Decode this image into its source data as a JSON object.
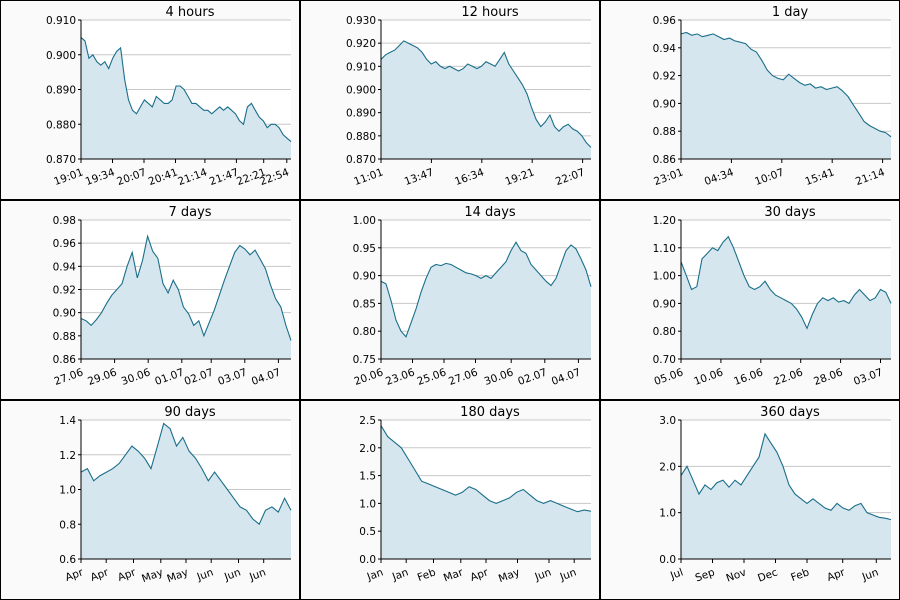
{
  "colors": {
    "line": "#1a6e8a",
    "fill": "#d6e6ee",
    "grid": "#c8c8c8",
    "axis": "#000000",
    "panel_bg": "#ffffff",
    "cell_bg": "#fafafa"
  },
  "chart_data": [
    {
      "type": "area",
      "title": "4 hours",
      "ylim": [
        0.87,
        0.91
      ],
      "yticks": [
        "0.870",
        "0.880",
        "0.890",
        "0.900",
        "0.910"
      ],
      "xticks": [
        "19:01",
        "19:34",
        "20:07",
        "20:41",
        "21:14",
        "21:47",
        "22:21",
        "22:54"
      ],
      "x_axis_pos": [
        0.0,
        0.15,
        0.3,
        0.45,
        0.59,
        0.74,
        0.87,
        0.98
      ],
      "series": [
        {
          "values": [
            0.905,
            0.904,
            0.899,
            0.9,
            0.898,
            0.897,
            0.898,
            0.896,
            0.899,
            0.901,
            0.902,
            0.893,
            0.887,
            0.884,
            0.883,
            0.885,
            0.887,
            0.886,
            0.885,
            0.888,
            0.887,
            0.886,
            0.886,
            0.887,
            0.891,
            0.891,
            0.89,
            0.888,
            0.886,
            0.886,
            0.885,
            0.884,
            0.884,
            0.883,
            0.884,
            0.885,
            0.884,
            0.885,
            0.884,
            0.883,
            0.881,
            0.88,
            0.885,
            0.886,
            0.884,
            0.882,
            0.881,
            0.879,
            0.88,
            0.88,
            0.879,
            0.877,
            0.876,
            0.875
          ]
        }
      ]
    },
    {
      "type": "area",
      "title": "12 hours",
      "ylim": [
        0.87,
        0.93
      ],
      "yticks": [
        "0.870",
        "0.880",
        "0.890",
        "0.900",
        "0.910",
        "0.920",
        "0.930"
      ],
      "xticks": [
        "11:01",
        "13:47",
        "16:34",
        "19:21",
        "22:07"
      ],
      "x_axis_pos": [
        0.0,
        0.24,
        0.48,
        0.72,
        0.96
      ],
      "series": [
        {
          "values": [
            0.913,
            0.915,
            0.916,
            0.917,
            0.919,
            0.921,
            0.92,
            0.919,
            0.918,
            0.916,
            0.913,
            0.911,
            0.912,
            0.91,
            0.909,
            0.91,
            0.909,
            0.908,
            0.909,
            0.911,
            0.91,
            0.909,
            0.91,
            0.912,
            0.911,
            0.91,
            0.913,
            0.916,
            0.911,
            0.908,
            0.905,
            0.902,
            0.898,
            0.892,
            0.887,
            0.884,
            0.886,
            0.889,
            0.884,
            0.882,
            0.884,
            0.885,
            0.883,
            0.882,
            0.88,
            0.877,
            0.875
          ]
        }
      ]
    },
    {
      "type": "area",
      "title": "1 day",
      "ylim": [
        0.86,
        0.96
      ],
      "yticks": [
        "0.86",
        "0.88",
        "0.90",
        "0.92",
        "0.94",
        "0.96"
      ],
      "xticks": [
        "23:01",
        "04:34",
        "10:07",
        "15:41",
        "21:14"
      ],
      "x_axis_pos": [
        0.0,
        0.24,
        0.48,
        0.72,
        0.96
      ],
      "series": [
        {
          "values": [
            0.95,
            0.951,
            0.949,
            0.95,
            0.948,
            0.949,
            0.95,
            0.948,
            0.946,
            0.947,
            0.945,
            0.944,
            0.943,
            0.939,
            0.937,
            0.931,
            0.924,
            0.92,
            0.918,
            0.917,
            0.921,
            0.918,
            0.915,
            0.913,
            0.914,
            0.911,
            0.912,
            0.91,
            0.911,
            0.912,
            0.909,
            0.905,
            0.899,
            0.893,
            0.887,
            0.884,
            0.882,
            0.88,
            0.879,
            0.876
          ]
        }
      ]
    },
    {
      "type": "area",
      "title": "7 days",
      "ylim": [
        0.86,
        0.98
      ],
      "yticks": [
        "0.86",
        "0.88",
        "0.90",
        "0.92",
        "0.94",
        "0.96",
        "0.98"
      ],
      "xticks": [
        "27.06",
        "29.06",
        "30.06",
        "01.07",
        "02.07",
        "03.07",
        "04.07"
      ],
      "x_axis_pos": [
        0.0,
        0.16,
        0.32,
        0.48,
        0.62,
        0.78,
        0.94
      ],
      "series": [
        {
          "values": [
            0.895,
            0.893,
            0.889,
            0.894,
            0.9,
            0.908,
            0.915,
            0.92,
            0.925,
            0.94,
            0.952,
            0.93,
            0.945,
            0.966,
            0.953,
            0.947,
            0.925,
            0.917,
            0.928,
            0.92,
            0.905,
            0.899,
            0.889,
            0.893,
            0.88,
            0.891,
            0.902,
            0.915,
            0.928,
            0.94,
            0.952,
            0.958,
            0.955,
            0.95,
            0.954,
            0.946,
            0.938,
            0.924,
            0.912,
            0.905,
            0.889,
            0.876
          ]
        }
      ]
    },
    {
      "type": "area",
      "title": "14 days",
      "ylim": [
        0.75,
        1.0
      ],
      "yticks": [
        "0.75",
        "0.80",
        "0.85",
        "0.90",
        "0.95",
        "1.00"
      ],
      "xticks": [
        "20.06",
        "23.06",
        "25.06",
        "27.06",
        "30.06",
        "02.07",
        "04.07"
      ],
      "x_axis_pos": [
        0.0,
        0.15,
        0.3,
        0.45,
        0.62,
        0.78,
        0.94
      ],
      "series": [
        {
          "values": [
            0.89,
            0.885,
            0.855,
            0.82,
            0.8,
            0.79,
            0.815,
            0.84,
            0.87,
            0.895,
            0.915,
            0.92,
            0.918,
            0.922,
            0.92,
            0.915,
            0.91,
            0.905,
            0.903,
            0.9,
            0.895,
            0.9,
            0.895,
            0.905,
            0.915,
            0.925,
            0.945,
            0.96,
            0.945,
            0.94,
            0.92,
            0.91,
            0.9,
            0.89,
            0.882,
            0.895,
            0.92,
            0.945,
            0.955,
            0.948,
            0.93,
            0.91,
            0.88
          ]
        }
      ]
    },
    {
      "type": "area",
      "title": "30 days",
      "ylim": [
        0.7,
        1.2
      ],
      "yticks": [
        "0.70",
        "0.80",
        "0.90",
        "1.00",
        "1.10",
        "1.20"
      ],
      "xticks": [
        "05.06",
        "10.06",
        "16.06",
        "22.06",
        "28.06",
        "03.07"
      ],
      "x_axis_pos": [
        0.0,
        0.19,
        0.38,
        0.57,
        0.76,
        0.95
      ],
      "series": [
        {
          "values": [
            1.05,
            1.0,
            0.95,
            0.96,
            1.06,
            1.08,
            1.1,
            1.09,
            1.12,
            1.14,
            1.1,
            1.05,
            1.0,
            0.96,
            0.95,
            0.96,
            0.98,
            0.95,
            0.93,
            0.92,
            0.91,
            0.9,
            0.88,
            0.85,
            0.81,
            0.86,
            0.9,
            0.92,
            0.91,
            0.92,
            0.905,
            0.91,
            0.9,
            0.93,
            0.95,
            0.93,
            0.91,
            0.92,
            0.95,
            0.94,
            0.9
          ]
        }
      ]
    },
    {
      "type": "area",
      "title": "90 days",
      "ylim": [
        0.6,
        1.4
      ],
      "yticks": [
        "0.6",
        "0.8",
        "1.0",
        "1.2",
        "1.4"
      ],
      "xticks": [
        "Apr",
        "Apr",
        "Apr",
        "May",
        "May",
        "Jun",
        "Jun",
        "Jun"
      ],
      "x_axis_pos": [
        0.0,
        0.12,
        0.25,
        0.38,
        0.5,
        0.62,
        0.75,
        0.87
      ],
      "series": [
        {
          "values": [
            1.1,
            1.12,
            1.05,
            1.08,
            1.1,
            1.12,
            1.15,
            1.2,
            1.25,
            1.22,
            1.18,
            1.12,
            1.25,
            1.38,
            1.35,
            1.25,
            1.3,
            1.22,
            1.18,
            1.12,
            1.05,
            1.1,
            1.05,
            1.0,
            0.95,
            0.9,
            0.88,
            0.83,
            0.8,
            0.88,
            0.9,
            0.87,
            0.95,
            0.88
          ]
        }
      ]
    },
    {
      "type": "area",
      "title": "180 days",
      "ylim": [
        0.0,
        2.5
      ],
      "yticks": [
        "0.0",
        "0.5",
        "1.0",
        "1.5",
        "2.0",
        "2.5"
      ],
      "xticks": [
        "Jan",
        "Jan",
        "Feb",
        "Mar",
        "Apr",
        "May",
        "Jun",
        "Jun"
      ],
      "x_axis_pos": [
        0.0,
        0.12,
        0.25,
        0.38,
        0.5,
        0.65,
        0.8,
        0.92
      ],
      "series": [
        {
          "values": [
            2.4,
            2.2,
            2.1,
            2.0,
            1.8,
            1.6,
            1.4,
            1.35,
            1.3,
            1.25,
            1.2,
            1.15,
            1.2,
            1.3,
            1.25,
            1.15,
            1.05,
            1.0,
            1.05,
            1.1,
            1.2,
            1.25,
            1.15,
            1.05,
            1.0,
            1.05,
            1.0,
            0.95,
            0.9,
            0.85,
            0.88,
            0.86
          ]
        }
      ]
    },
    {
      "type": "area",
      "title": "360 days",
      "ylim": [
        0.0,
        3.0
      ],
      "yticks": [
        "0.0",
        "1.0",
        "2.0",
        "3.0"
      ],
      "xticks": [
        "Jul",
        "Sep",
        "Nov",
        "Dec",
        "Feb",
        "Apr",
        "Jun"
      ],
      "x_axis_pos": [
        0.0,
        0.15,
        0.3,
        0.45,
        0.6,
        0.77,
        0.93
      ],
      "series": [
        {
          "values": [
            1.8,
            2.0,
            1.7,
            1.4,
            1.6,
            1.5,
            1.65,
            1.7,
            1.55,
            1.7,
            1.6,
            1.8,
            2.0,
            2.2,
            2.7,
            2.5,
            2.3,
            2.0,
            1.6,
            1.4,
            1.3,
            1.2,
            1.3,
            1.2,
            1.1,
            1.05,
            1.2,
            1.1,
            1.05,
            1.15,
            1.2,
            1.0,
            0.95,
            0.9,
            0.88,
            0.85
          ]
        }
      ]
    }
  ]
}
